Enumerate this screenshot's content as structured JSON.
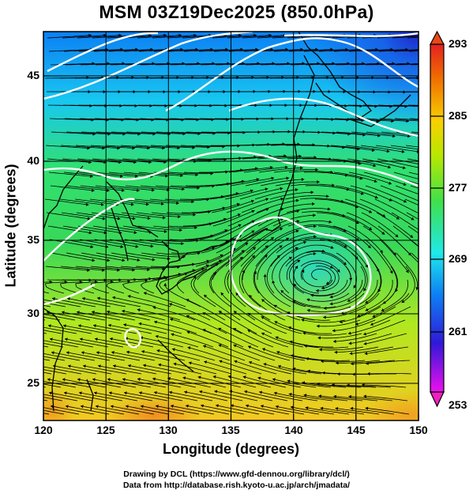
{
  "title": "MSM 03Z19Dec2025 (850.0hPa)",
  "x_axis": {
    "label": "Longitude (degrees)",
    "range": [
      120,
      150
    ],
    "ticks": [
      "120",
      "125",
      "130",
      "135",
      "140",
      "145",
      "150"
    ]
  },
  "y_axis": {
    "label": "Latitude  (degrees)",
    "range": [
      22.4,
      47.6
    ],
    "ticks": [
      "25",
      "30",
      "35",
      "40",
      "45"
    ]
  },
  "colorbar": {
    "min": 253,
    "max": 293,
    "labels": [
      "293",
      "285",
      "277",
      "269",
      "261",
      "253"
    ],
    "colors": [
      "#ee10ee",
      "#3018d8",
      "#0c80f4",
      "#20e8e8",
      "#40e04a",
      "#b8e800",
      "#f8d000",
      "#f07000",
      "#e42020"
    ]
  },
  "credits": {
    "line1": "Drawing by DCL (https://www.gfd-dennou.org/library/dcl/)",
    "line2": "Data from http://database.rish.kyoto-u.ac.jp/arch/jmadata/"
  }
}
